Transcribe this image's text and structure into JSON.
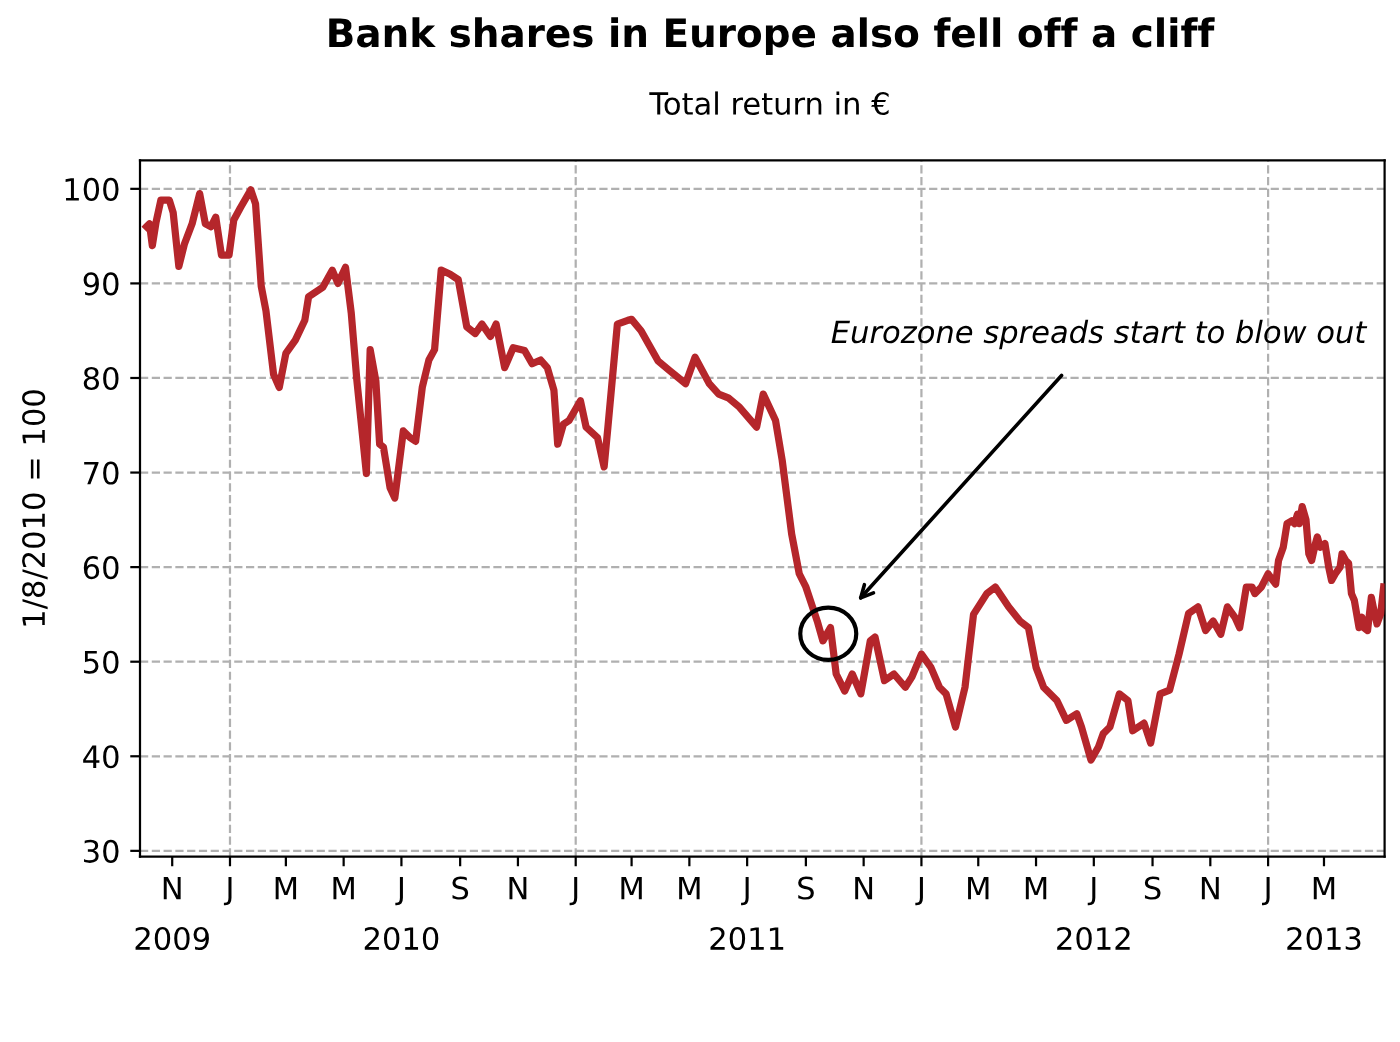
{
  "chart_data": {
    "type": "line",
    "title": "Bank shares in Europe also fell off a cliff",
    "subtitle": "Total return in €",
    "ylabel": "1/8/2010 = 100",
    "x": [
      "2009-10-05",
      "2009-10-08",
      "2009-10-11",
      "2009-10-15",
      "2009-10-20",
      "2009-10-29",
      "2009-11-02",
      "2009-11-08",
      "2009-11-14",
      "2009-11-22",
      "2009-11-30",
      "2009-12-06",
      "2009-12-12",
      "2009-12-17",
      "2009-12-23",
      "2009-12-31",
      "2010-01-05",
      "2010-01-12",
      "2010-01-23",
      "2010-01-28",
      "2010-02-03",
      "2010-02-08",
      "2010-02-16",
      "2010-02-22",
      "2010-03-01",
      "2010-03-11",
      "2010-03-21",
      "2010-03-25",
      "2010-04-09",
      "2010-04-19",
      "2010-04-25",
      "2010-05-03",
      "2010-05-09",
      "2010-05-15",
      "2010-05-25",
      "2010-05-29",
      "2010-06-04",
      "2010-06-08",
      "2010-06-12",
      "2010-06-19",
      "2010-06-24",
      "2010-07-03",
      "2010-07-10",
      "2010-07-16",
      "2010-07-23",
      "2010-07-30",
      "2010-08-05",
      "2010-08-12",
      "2010-08-21",
      "2010-08-30",
      "2010-09-08",
      "2010-09-17",
      "2010-09-24",
      "2010-10-03",
      "2010-10-09",
      "2010-10-18",
      "2010-10-27",
      "2010-11-08",
      "2010-11-16",
      "2010-11-25",
      "2010-12-02",
      "2010-12-09",
      "2010-12-13",
      "2010-12-19",
      "2010-12-25",
      "2011-01-06",
      "2011-01-12",
      "2011-01-24",
      "2011-01-31",
      "2011-02-04",
      "2011-02-14",
      "2011-02-25",
      "2011-03-01",
      "2011-03-11",
      "2011-03-29",
      "2011-04-10",
      "2011-04-27",
      "2011-05-07",
      "2011-05-22",
      "2011-06-01",
      "2011-06-11",
      "2011-06-23",
      "2011-07-11",
      "2011-07-18",
      "2011-07-31",
      "2011-08-07",
      "2011-08-17",
      "2011-08-25",
      "2011-09-01",
      "2011-09-13",
      "2011-09-19",
      "2011-09-27",
      "2011-10-03",
      "2011-10-12",
      "2011-10-20",
      "2011-10-29",
      "2011-11-08",
      "2011-11-13",
      "2011-11-23",
      "2011-12-03",
      "2011-12-15",
      "2011-12-22",
      "2012-01-01",
      "2012-01-11",
      "2012-01-20",
      "2012-01-27",
      "2012-02-06",
      "2012-02-16",
      "2012-02-25",
      "2012-03-10",
      "2012-03-19",
      "2012-04-02",
      "2012-04-14",
      "2012-04-23",
      "2012-05-01",
      "2012-05-09",
      "2012-05-23",
      "2012-06-02",
      "2012-06-13",
      "2012-06-18",
      "2012-06-28",
      "2012-07-06",
      "2012-07-11",
      "2012-07-18",
      "2012-07-28",
      "2012-08-06",
      "2012-08-11",
      "2012-08-23",
      "2012-08-30",
      "2012-09-09",
      "2012-09-19",
      "2012-09-29",
      "2012-10-09",
      "2012-10-19",
      "2012-10-27",
      "2012-11-04",
      "2012-11-12",
      "2012-11-19",
      "2012-11-27",
      "2012-12-02",
      "2012-12-09",
      "2012-12-15",
      "2012-12-18",
      "2012-12-25",
      "2013-01-01",
      "2013-01-06",
      "2013-01-09",
      "2013-01-12",
      "2013-01-17",
      "2013-01-21",
      "2013-01-26",
      "2013-01-29",
      "2013-02-01",
      "2013-02-03",
      "2013-02-06",
      "2013-02-10",
      "2013-02-13",
      "2013-02-16",
      "2013-02-20",
      "2013-02-22",
      "2013-02-25",
      "2013-03-02",
      "2013-03-06",
      "2013-03-09",
      "2013-03-13",
      "2013-03-18",
      "2013-03-20",
      "2013-03-24",
      "2013-03-27",
      "2013-03-30",
      "2013-04-02",
      "2013-04-07",
      "2013-04-10",
      "2013-04-12",
      "2013-04-16",
      "2013-04-20",
      "2013-04-22",
      "2013-04-26",
      "2013-04-30",
      "2013-05-03"
    ],
    "series": [
      {
        "color": "#b5262b",
        "values": [
          96.0,
          96.3,
          94,
          96.5,
          98.8,
          98.8,
          97.5,
          91.8,
          94.2,
          96.3,
          99.5,
          96.3,
          96,
          97,
          93,
          93,
          96.7,
          98,
          99.9,
          98.4,
          89.7,
          87.1,
          80.4,
          79,
          82.6,
          84,
          86.1,
          88.6,
          89.6,
          91.4,
          90,
          91.7,
          86.9,
          79.7,
          69.9,
          83,
          79.7,
          73,
          72.7,
          68.4,
          67.3,
          74.4,
          73.7,
          73.3,
          79,
          81.9,
          83,
          91.4,
          91,
          90.4,
          85.4,
          84.7,
          85.7,
          84.4,
          85.7,
          81.1,
          83.2,
          82.9,
          81.5,
          81.9,
          81.1,
          78.7,
          73,
          75.1,
          75.5,
          77.6,
          74.8,
          73.7,
          70.6,
          74.8,
          85.7,
          86.1,
          86.2,
          85,
          81.8,
          80.8,
          79.4,
          82.2,
          79.4,
          78.3,
          77.9,
          76.9,
          74.8,
          78.3,
          75.5,
          71.3,
          63.5,
          59.3,
          57.9,
          54.3,
          52.2,
          53.6,
          48.7,
          46.9,
          48.7,
          46.6,
          52.2,
          52.6,
          48,
          48.7,
          47.3,
          48.4,
          50.8,
          49.4,
          47.3,
          46.6,
          43.1,
          47.3,
          55,
          57.2,
          57.9,
          55.8,
          54.3,
          53.6,
          49.4,
          47.3,
          45.9,
          43.8,
          44.5,
          43.1,
          39.6,
          41,
          42.4,
          43.1,
          46.6,
          45.9,
          42.7,
          43.5,
          41.4,
          46.6,
          47,
          50.8,
          55.1,
          55.8,
          53.3,
          54.3,
          52.9,
          55.8,
          54.7,
          53.6,
          57.9,
          57.9,
          57.2,
          57.9,
          59.3,
          58.6,
          58.2,
          60.7,
          62.1,
          64.6,
          64.9,
          64.6,
          65.6,
          64.6,
          66.4,
          65,
          61.4,
          60.7,
          62.5,
          63.2,
          62.1,
          62.5,
          60,
          58.6,
          59.3,
          60,
          61.4,
          60.7,
          60.4,
          57.2,
          56.5,
          53.6,
          54.7,
          53.6,
          53.3,
          56.8,
          55.8,
          54,
          55.1,
          57.9
        ]
      }
    ],
    "xlim": [
      "2009-09-28",
      "2013-05-04"
    ],
    "xticks": [
      {
        "value": "2009-11-01",
        "label": "N\n2009"
      },
      {
        "value": "2010-01-01",
        "label": "J"
      },
      {
        "value": "2010-03-01",
        "label": "M"
      },
      {
        "value": "2010-05-01",
        "label": "M"
      },
      {
        "value": "2010-07-01",
        "label": "J\n2010"
      },
      {
        "value": "2010-09-01",
        "label": "S"
      },
      {
        "value": "2010-11-01",
        "label": "N"
      },
      {
        "value": "2011-01-01",
        "label": "J"
      },
      {
        "value": "2011-03-01",
        "label": "M"
      },
      {
        "value": "2011-05-01",
        "label": "M"
      },
      {
        "value": "2011-07-01",
        "label": "J\n2011"
      },
      {
        "value": "2011-09-01",
        "label": "S"
      },
      {
        "value": "2011-11-01",
        "label": "N"
      },
      {
        "value": "2012-01-01",
        "label": "J"
      },
      {
        "value": "2012-03-01",
        "label": "M"
      },
      {
        "value": "2012-05-01",
        "label": "M"
      },
      {
        "value": "2012-07-01",
        "label": "J\n2012"
      },
      {
        "value": "2012-09-01",
        "label": "S"
      },
      {
        "value": "2012-11-01",
        "label": "N"
      },
      {
        "value": "2013-01-01",
        "label": "J"
      },
      {
        "value": "2013-03-01",
        "label": "M\n2013"
      }
    ],
    "ylim": [
      29.4,
      103
    ],
    "yticks": [
      30,
      40,
      50,
      60,
      70,
      80,
      90,
      100
    ],
    "grid": "y",
    "line_style": "solid",
    "marker": "none",
    "ref_lines": [
      {
        "axis": "x",
        "value": "2010-01-01",
        "label": null,
        "color": "#b0b0b0",
        "line_style": "dashed"
      },
      {
        "axis": "x",
        "value": "2011-01-01",
        "label": null,
        "color": "#b0b0b0",
        "line_style": "dashed"
      },
      {
        "axis": "x",
        "value": "2012-01-01",
        "label": null,
        "color": "#b0b0b0",
        "line_style": "dashed"
      },
      {
        "axis": "x",
        "value": "2013-01-01",
        "label": null,
        "color": "#b0b0b0",
        "line_style": "dashed"
      }
    ],
    "annotations": [
      "Eurozone spreads start to blow out"
    ]
  }
}
